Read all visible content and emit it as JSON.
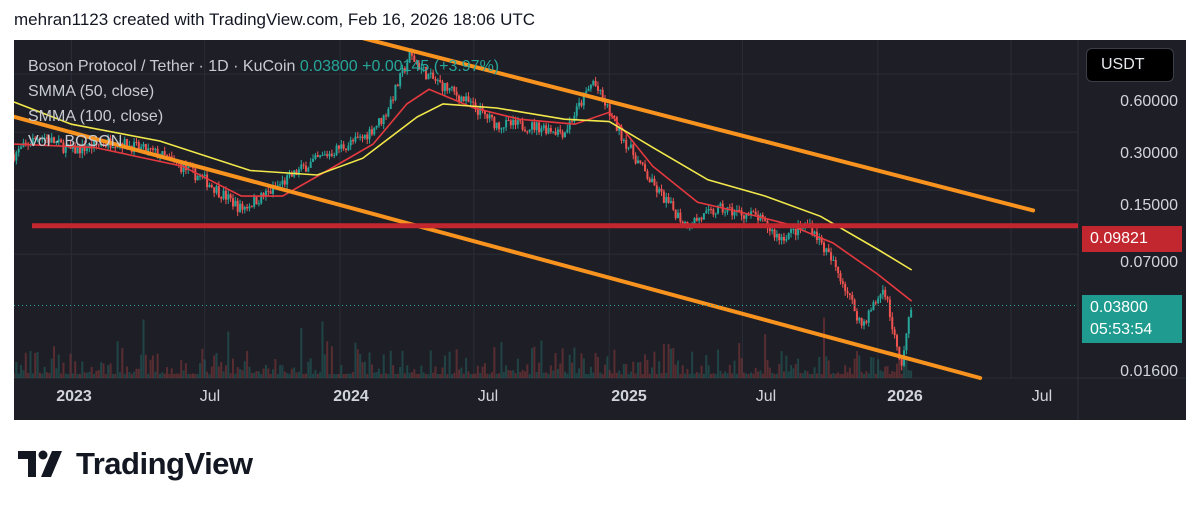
{
  "header": {
    "text": "mehran1123 created with TradingView.com, Feb 16, 2026 18:06 UTC"
  },
  "legend": {
    "symbol": "Boson Protocol / Tether · 1D · KuCoin",
    "price": "0.03800",
    "change": "+0.00145 (+3.97%)",
    "indicators": [
      "SMMA (50, close)",
      "SMMA (100, close)",
      "Vol · BOSON"
    ]
  },
  "currency_button": "USDT",
  "price_axis": [
    "0.60000",
    "0.30000",
    "0.15000",
    "0.07000",
    "0.01600"
  ],
  "level_label": "0.09821",
  "current_price_label": {
    "price": "0.03800",
    "countdown": "05:53:54"
  },
  "time_axis": [
    {
      "label": "2023",
      "bold": true
    },
    {
      "label": "Jul",
      "bold": false
    },
    {
      "label": "2024",
      "bold": true
    },
    {
      "label": "Jul",
      "bold": false
    },
    {
      "label": "2025",
      "bold": true
    },
    {
      "label": "Jul",
      "bold": false
    },
    {
      "label": "2026",
      "bold": true
    },
    {
      "label": "Jul",
      "bold": false
    }
  ],
  "brand": {
    "name": "TradingView",
    "icon": "tradingview-logo-icon"
  },
  "colors": {
    "panel_bg": "#1e1f26",
    "channel": "#f7931e",
    "level_line": "#c2262e",
    "smma50": "#e5393f",
    "smma100": "#f2e84b",
    "up": "#26a69a",
    "down": "#ef5350"
  },
  "chart_data": {
    "type": "candlestick",
    "scale": "log",
    "ylim": [
      0.016,
      0.9
    ],
    "x_range": [
      "2022-10-15",
      "2026-09-30"
    ],
    "horizontal_level": 0.09821,
    "channel_upper": [
      {
        "x": "2023-10-25",
        "y": 1.15
      },
      {
        "x": "2026-07-31",
        "y": 0.118
      }
    ],
    "channel_lower": [
      {
        "x": "2022-10-15",
        "y": 0.36
      },
      {
        "x": "2026-05-20",
        "y": 0.016
      }
    ],
    "price_path": [
      [
        "2022-10-15",
        0.23
      ],
      [
        "2022-11-20",
        0.29
      ],
      [
        "2023-01-01",
        0.24
      ],
      [
        "2023-03-01",
        0.27
      ],
      [
        "2023-05-01",
        0.23
      ],
      [
        "2023-07-01",
        0.17
      ],
      [
        "2023-08-20",
        0.12
      ],
      [
        "2023-10-01",
        0.15
      ],
      [
        "2023-11-15",
        0.2
      ],
      [
        "2024-01-01",
        0.25
      ],
      [
        "2024-02-01",
        0.28
      ],
      [
        "2024-03-01",
        0.36
      ],
      [
        "2024-04-05",
        0.75
      ],
      [
        "2024-05-01",
        0.58
      ],
      [
        "2024-06-15",
        0.45
      ],
      [
        "2024-08-01",
        0.33
      ],
      [
        "2024-10-01",
        0.32
      ],
      [
        "2024-11-01",
        0.3
      ],
      [
        "2024-12-10",
        0.55
      ],
      [
        "2025-01-15",
        0.3
      ],
      [
        "2025-03-01",
        0.16
      ],
      [
        "2025-04-15",
        0.1
      ],
      [
        "2025-06-01",
        0.12
      ],
      [
        "2025-07-20",
        0.11
      ],
      [
        "2025-08-20",
        0.085
      ],
      [
        "2025-10-01",
        0.1
      ],
      [
        "2025-11-10",
        0.055
      ],
      [
        "2025-12-10",
        0.03
      ],
      [
        "2026-01-10",
        0.047
      ],
      [
        "2026-02-01",
        0.018
      ],
      [
        "2026-02-16",
        0.038
      ]
    ],
    "series": [
      {
        "name": "SMMA (50, close)",
        "path": [
          [
            "2022-10-15",
            0.26
          ],
          [
            "2023-02-01",
            0.25
          ],
          [
            "2023-06-01",
            0.2
          ],
          [
            "2023-08-20",
            0.14
          ],
          [
            "2023-10-15",
            0.14
          ],
          [
            "2023-12-15",
            0.19
          ],
          [
            "2024-02-15",
            0.26
          ],
          [
            "2024-04-01",
            0.42
          ],
          [
            "2024-05-01",
            0.5
          ],
          [
            "2024-07-01",
            0.4
          ],
          [
            "2024-09-01",
            0.35
          ],
          [
            "2024-11-15",
            0.33
          ],
          [
            "2025-01-01",
            0.38
          ],
          [
            "2025-03-01",
            0.2
          ],
          [
            "2025-05-01",
            0.13
          ],
          [
            "2025-07-01",
            0.115
          ],
          [
            "2025-09-01",
            0.1
          ],
          [
            "2025-11-01",
            0.08
          ],
          [
            "2026-01-01",
            0.055
          ],
          [
            "2026-02-16",
            0.04
          ]
        ]
      },
      {
        "name": "SMMA (100, close)",
        "path": [
          [
            "2022-10-15",
            0.43
          ],
          [
            "2023-01-01",
            0.33
          ],
          [
            "2023-05-01",
            0.27
          ],
          [
            "2023-09-01",
            0.19
          ],
          [
            "2023-12-01",
            0.18
          ],
          [
            "2024-02-01",
            0.22
          ],
          [
            "2024-04-15",
            0.36
          ],
          [
            "2024-05-20",
            0.42
          ],
          [
            "2024-08-01",
            0.4
          ],
          [
            "2024-11-01",
            0.35
          ],
          [
            "2025-01-01",
            0.34
          ],
          [
            "2025-03-01",
            0.25
          ],
          [
            "2025-05-15",
            0.17
          ],
          [
            "2025-08-01",
            0.14
          ],
          [
            "2025-10-15",
            0.11
          ],
          [
            "2026-01-01",
            0.074
          ],
          [
            "2026-02-16",
            0.058
          ]
        ]
      }
    ]
  }
}
